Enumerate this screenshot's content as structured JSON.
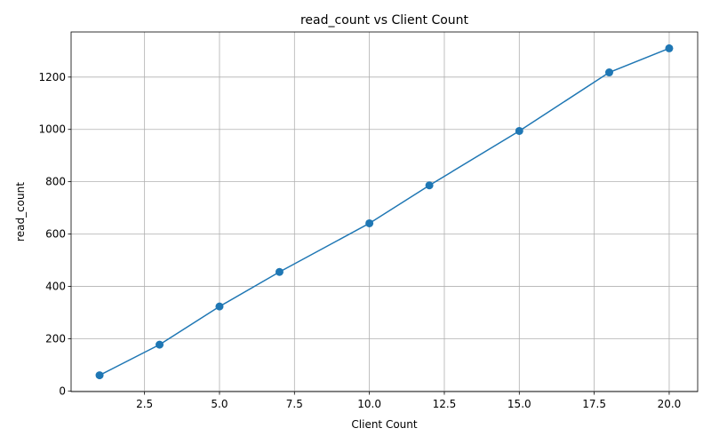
{
  "chart_data": {
    "type": "line",
    "title": "read_count vs Client Count",
    "xlabel": "Client Count",
    "ylabel": "read_count",
    "x": [
      1,
      3,
      5,
      7,
      10,
      12,
      15,
      18,
      20
    ],
    "series": [
      {
        "values": [
          60,
          177,
          323,
          455,
          641,
          786,
          994,
          1218,
          1310
        ]
      }
    ],
    "xlim": [
      0.05,
      20.95
    ],
    "ylim": [
      -2.5,
      1372.5
    ],
    "xticks": [
      2.5,
      5.0,
      7.5,
      10.0,
      12.5,
      15.0,
      17.5,
      20.0
    ],
    "xtick_labels": [
      "2.5",
      "5.0",
      "7.5",
      "10.0",
      "12.5",
      "15.0",
      "17.5",
      "20.0"
    ],
    "yticks": [
      0,
      200,
      400,
      600,
      800,
      1000,
      1200
    ],
    "ytick_labels": [
      "0",
      "200",
      "400",
      "600",
      "800",
      "1000",
      "1200"
    ],
    "grid": true,
    "marker": "circle",
    "color": "#1f77b4"
  }
}
